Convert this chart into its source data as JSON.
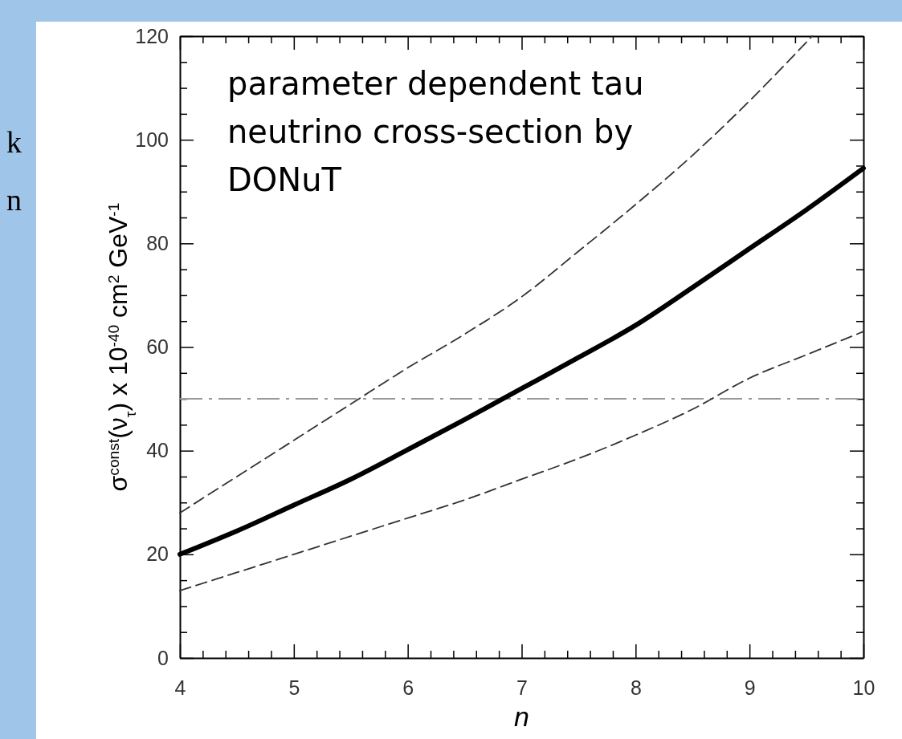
{
  "chart_data": {
    "type": "line",
    "xlabel": "n",
    "ylabel": "σ$^{const}$(ν$_{τ}$) x 10$^{-40}$ cm$^{2}$ GeV$^{-1}$",
    "annotations": [
      "parameter dependent tau neutrino cross-section by DONuT",
      "k",
      "n"
    ],
    "xlim": [
      4,
      10
    ],
    "ylim": [
      0,
      120
    ],
    "xticks": [
      4,
      {
        "value": 4.2,
        "label": null
      },
      {
        "value": 4.4,
        "label": null
      },
      {
        "value": 4.6,
        "label": null
      },
      {
        "value": 4.8,
        "label": null
      },
      5,
      {
        "value": 5.2,
        "label": null
      },
      {
        "value": 5.4,
        "label": null
      },
      {
        "value": 5.6,
        "label": null
      },
      {
        "value": 5.8,
        "label": null
      },
      6,
      {
        "value": 6.2,
        "label": null
      },
      {
        "value": 6.4,
        "label": null
      },
      {
        "value": 6.6,
        "label": null
      },
      {
        "value": 6.8,
        "label": null
      },
      7,
      {
        "value": 7.2,
        "label": null
      },
      {
        "value": 7.4,
        "label": null
      },
      {
        "value": 7.6,
        "label": null
      },
      {
        "value": 7.8,
        "label": null
      },
      8,
      {
        "value": 8.2,
        "label": null
      },
      {
        "value": 8.4,
        "label": null
      },
      {
        "value": 8.6,
        "label": null
      },
      {
        "value": 8.8,
        "label": null
      },
      9,
      {
        "value": 9.2,
        "label": null
      },
      {
        "value": 9.4,
        "label": null
      },
      {
        "value": 9.6,
        "label": null
      },
      {
        "value": 9.8,
        "label": null
      },
      10
    ],
    "yticks": [
      0,
      {
        "value": 5,
        "label": null
      },
      {
        "value": 10,
        "label": null
      },
      {
        "value": 15,
        "label": null
      },
      20,
      {
        "value": 25,
        "label": null
      },
      {
        "value": 30,
        "label": null
      },
      {
        "value": 35,
        "label": null
      },
      40,
      {
        "value": 45,
        "label": null
      },
      {
        "value": 50,
        "label": null
      },
      {
        "value": 55,
        "label": null
      },
      60,
      {
        "value": 65,
        "label": null
      },
      {
        "value": 70,
        "label": null
      },
      {
        "value": 75,
        "label": null
      },
      80,
      {
        "value": 85,
        "label": null
      },
      {
        "value": 90,
        "label": null
      },
      {
        "value": 95,
        "label": null
      },
      100,
      {
        "value": 105,
        "label": null
      },
      {
        "value": 110,
        "label": null
      },
      {
        "value": 115,
        "label": null
      },
      120
    ],
    "grid": false,
    "marker": "none",
    "ref_lines": [
      {
        "axis": "y",
        "value": 50,
        "color": "#999999",
        "line_style": "dashdot"
      }
    ],
    "series": [
      {
        "color": "#000000",
        "line_style": "solid",
        "x": [
          4,
          4.5,
          5,
          5.5,
          6,
          6.5,
          7,
          7.5,
          8,
          8.5,
          9,
          9.5,
          10
        ],
        "values": [
          20,
          24.5,
          29.5,
          34.5,
          40.2,
          46,
          52,
          58,
          64.2,
          71.5,
          79,
          86.5,
          94.5
        ]
      },
      {
        "color": "#333333",
        "line_style": "dashed",
        "x": [
          4,
          4.5,
          5,
          5.5,
          6,
          6.5,
          7,
          7.5,
          8,
          8.5,
          9,
          9.55
        ],
        "values": [
          28,
          35,
          42,
          49,
          56,
          62.5,
          69.7,
          78.5,
          87.5,
          97,
          107.5,
          120
        ]
      },
      {
        "color": "#333333",
        "line_style": "dashed",
        "x": [
          4,
          4.5,
          5,
          5.5,
          6,
          6.5,
          7,
          7.5,
          8,
          8.5,
          9,
          9.5,
          10
        ],
        "values": [
          13,
          16.5,
          20,
          23.5,
          27,
          30.5,
          34.5,
          38.5,
          43,
          48,
          54,
          58.5,
          63
        ]
      }
    ]
  }
}
